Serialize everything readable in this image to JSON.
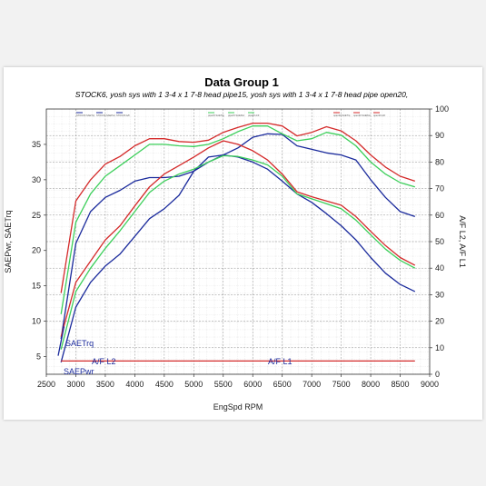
{
  "chart_data": {
    "type": "line",
    "title": "Data Group 1",
    "subtitle": "STOCK6, yosh sys with 1 3-4 x 1 7-8 head pipe15, yosh sys with 1 3-4 x 1 7-8 head pipe open20,",
    "xlabel": "EngSpd  RPM",
    "ylabel_left": "SAEPwr, SAETrq",
    "ylabel_right": "A/F L2, A/F L1",
    "xlim": [
      2500,
      9000
    ],
    "ylim_left": [
      2.5,
      40
    ],
    "ylim_right": [
      0,
      100
    ],
    "x_ticks": [
      2500,
      3000,
      3500,
      4000,
      4500,
      5000,
      5500,
      6000,
      6500,
      7000,
      7500,
      8000,
      8500,
      9000
    ],
    "y_left_ticks": [
      5,
      10,
      15,
      20,
      25,
      30,
      35
    ],
    "y_right_ticks": [
      0,
      10,
      20,
      30,
      40,
      50,
      60,
      70,
      80,
      90,
      100
    ],
    "grid": true,
    "legend_placement": "top",
    "colors": {
      "stock": "#1a2a9c",
      "pipe15": "#3ccf5a",
      "open20": "#d42a2a"
    },
    "series": [
      {
        "run": "stock",
        "quantity": "SAETrq",
        "points": [
          [
            2750,
            7.5
          ],
          [
            3000,
            21
          ],
          [
            3250,
            25.5
          ],
          [
            3500,
            27.5
          ],
          [
            3750,
            28.5
          ],
          [
            4000,
            29.8
          ],
          [
            4250,
            30.3
          ],
          [
            4500,
            30.3
          ],
          [
            4750,
            30.5
          ],
          [
            5000,
            31.2
          ],
          [
            5250,
            32.5
          ],
          [
            5500,
            33.5
          ],
          [
            5750,
            34.5
          ],
          [
            6000,
            36.0
          ],
          [
            6250,
            36.5
          ],
          [
            6500,
            36.4
          ],
          [
            6750,
            34.8
          ],
          [
            7000,
            34.3
          ],
          [
            7250,
            33.8
          ],
          [
            7500,
            33.5
          ],
          [
            7750,
            32.8
          ],
          [
            8000,
            30.0
          ],
          [
            8250,
            27.5
          ],
          [
            8500,
            25.5
          ],
          [
            8750,
            24.8
          ]
        ]
      },
      {
        "run": "pipe15",
        "quantity": "SAETrq",
        "points": [
          [
            2750,
            11
          ],
          [
            3000,
            24
          ],
          [
            3250,
            28
          ],
          [
            3500,
            30.5
          ],
          [
            3750,
            32
          ],
          [
            4000,
            33.5
          ],
          [
            4250,
            35
          ],
          [
            4500,
            35
          ],
          [
            4750,
            34.8
          ],
          [
            5000,
            34.7
          ],
          [
            5250,
            35.0
          ],
          [
            5500,
            35.8
          ],
          [
            5750,
            36.8
          ],
          [
            6000,
            37.6
          ],
          [
            6250,
            37.6
          ],
          [
            6500,
            36.5
          ],
          [
            6750,
            35.5
          ],
          [
            7000,
            35.8
          ],
          [
            7250,
            36.7
          ],
          [
            7500,
            36.3
          ],
          [
            7750,
            34.8
          ],
          [
            8000,
            32.5
          ],
          [
            8250,
            30.8
          ],
          [
            8500,
            29.6
          ],
          [
            8750,
            29.0
          ]
        ]
      },
      {
        "run": "open20",
        "quantity": "SAETrq",
        "points": [
          [
            2750,
            14
          ],
          [
            3000,
            27
          ],
          [
            3250,
            30
          ],
          [
            3500,
            32.2
          ],
          [
            3750,
            33.3
          ],
          [
            4000,
            34.8
          ],
          [
            4250,
            35.8
          ],
          [
            4500,
            35.8
          ],
          [
            4750,
            35.4
          ],
          [
            5000,
            35.3
          ],
          [
            5250,
            35.6
          ],
          [
            5500,
            36.7
          ],
          [
            5750,
            37.4
          ],
          [
            6000,
            38.0
          ],
          [
            6250,
            38.0
          ],
          [
            6500,
            37.6
          ],
          [
            6750,
            36.2
          ],
          [
            7000,
            36.7
          ],
          [
            7250,
            37.5
          ],
          [
            7500,
            36.9
          ],
          [
            7750,
            35.5
          ],
          [
            8000,
            33.5
          ],
          [
            8250,
            31.8
          ],
          [
            8500,
            30.5
          ],
          [
            8750,
            29.8
          ]
        ]
      },
      {
        "run": "stock",
        "quantity": "SAEPwr",
        "points": [
          [
            2750,
            4.2
          ],
          [
            3000,
            12
          ],
          [
            3250,
            15.5
          ],
          [
            3500,
            17.8
          ],
          [
            3750,
            19.5
          ],
          [
            4000,
            22.0
          ],
          [
            4250,
            24.5
          ],
          [
            4500,
            25.9
          ],
          [
            4750,
            27.8
          ],
          [
            5000,
            31.2
          ],
          [
            5250,
            33.2
          ],
          [
            5500,
            33.5
          ],
          [
            5750,
            33.2
          ],
          [
            6000,
            32.5
          ],
          [
            6250,
            31.5
          ],
          [
            6500,
            29.8
          ],
          [
            6750,
            28.0
          ],
          [
            7000,
            26.8
          ],
          [
            7250,
            25.2
          ],
          [
            7500,
            23.5
          ],
          [
            7750,
            21.5
          ],
          [
            8000,
            19.0
          ],
          [
            8250,
            16.8
          ],
          [
            8500,
            15.2
          ],
          [
            8750,
            14.2
          ]
        ]
      },
      {
        "run": "pipe15",
        "quantity": "SAEPwr",
        "points": [
          [
            2750,
            6.0
          ],
          [
            3000,
            14.2
          ],
          [
            3250,
            17.5
          ],
          [
            3500,
            20.3
          ],
          [
            3750,
            22.8
          ],
          [
            4000,
            25.5
          ],
          [
            4250,
            28.2
          ],
          [
            4500,
            29.8
          ],
          [
            4750,
            30.8
          ],
          [
            5000,
            31.5
          ],
          [
            5250,
            32.5
          ],
          [
            5500,
            33.4
          ],
          [
            5750,
            33.3
          ],
          [
            6000,
            32.8
          ],
          [
            6250,
            32.1
          ],
          [
            6500,
            30.5
          ],
          [
            6750,
            28.0
          ],
          [
            7000,
            27.3
          ],
          [
            7250,
            26.6
          ],
          [
            7500,
            25.9
          ],
          [
            7750,
            24.3
          ],
          [
            8000,
            22.2
          ],
          [
            8250,
            20.2
          ],
          [
            8500,
            18.6
          ],
          [
            8750,
            17.5
          ]
        ]
      },
      {
        "run": "open20",
        "quantity": "SAEPwr",
        "points": [
          [
            2750,
            7.8
          ],
          [
            3000,
            15.5
          ],
          [
            3250,
            18.5
          ],
          [
            3500,
            21.5
          ],
          [
            3750,
            23.5
          ],
          [
            4000,
            26.3
          ],
          [
            4250,
            29.0
          ],
          [
            4500,
            30.8
          ],
          [
            4750,
            32.0
          ],
          [
            5000,
            33.2
          ],
          [
            5250,
            34.5
          ],
          [
            5500,
            35.5
          ],
          [
            5750,
            35.0
          ],
          [
            6000,
            34.1
          ],
          [
            6250,
            32.8
          ],
          [
            6500,
            30.8
          ],
          [
            6750,
            28.3
          ],
          [
            7000,
            27.6
          ],
          [
            7250,
            27.0
          ],
          [
            7500,
            26.4
          ],
          [
            7750,
            24.8
          ],
          [
            8000,
            22.7
          ],
          [
            8250,
            20.7
          ],
          [
            8500,
            19.0
          ],
          [
            8750,
            17.9
          ]
        ]
      },
      {
        "run": "stock",
        "quantity": "A/F",
        "axis": "right",
        "points": [
          [
            2700,
            7
          ],
          [
            2800,
            18
          ]
        ]
      },
      {
        "run": "open20",
        "quantity": "A/F",
        "axis": "right",
        "points": [
          [
            2750,
            5
          ],
          [
            8750,
            5
          ]
        ]
      }
    ],
    "annotations": [
      "SAETrq",
      "SAEPwr",
      "A/F L2",
      "A/F L1"
    ],
    "legend_entries": [
      "STOCK6 SAETrq",
      "STOCK6 SAEPwr",
      "STOCK6 A/F",
      "pipe15 SAETrq",
      "pipe15 SAEPwr",
      "pipe15 A/F",
      "open20 SAETrq",
      "open20 SAEPwr",
      "open20 A/F"
    ]
  }
}
